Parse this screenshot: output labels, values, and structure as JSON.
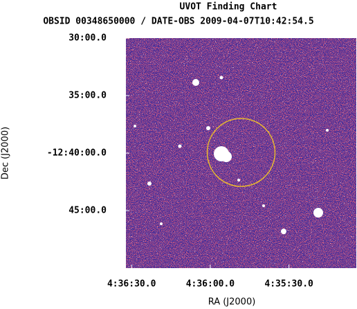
{
  "chart_data": {
    "type": "image",
    "title": "UVOT Finding Chart",
    "subtitle": "OBSID 00348650000 / DATE-OBS 2009-04-07T10:42:54.5",
    "xlabel": "RA (J2000)",
    "ylabel": "Dec (J2000)",
    "xlim": [
      69.134,
      68.768
    ],
    "ylim": [
      -12.8333,
      -12.5
    ],
    "xticks": [
      {
        "value": 69.125,
        "label": "4:36:30.0"
      },
      {
        "value": 69.0,
        "label": "4:36:00.0"
      },
      {
        "value": 68.875,
        "label": "4:35:30.0"
      }
    ],
    "yticks": [
      {
        "value": -12.5,
        "label": "30:00.0"
      },
      {
        "value": -12.5833,
        "label": "35:00.0"
      },
      {
        "value": -12.6667,
        "label": "-12:40:00.0"
      },
      {
        "value": -12.75,
        "label": "45:00.0"
      }
    ],
    "circle": {
      "ra": 68.951,
      "dec": -12.6657,
      "radius": 0.0492,
      "color": "#e8b830"
    }
  }
}
